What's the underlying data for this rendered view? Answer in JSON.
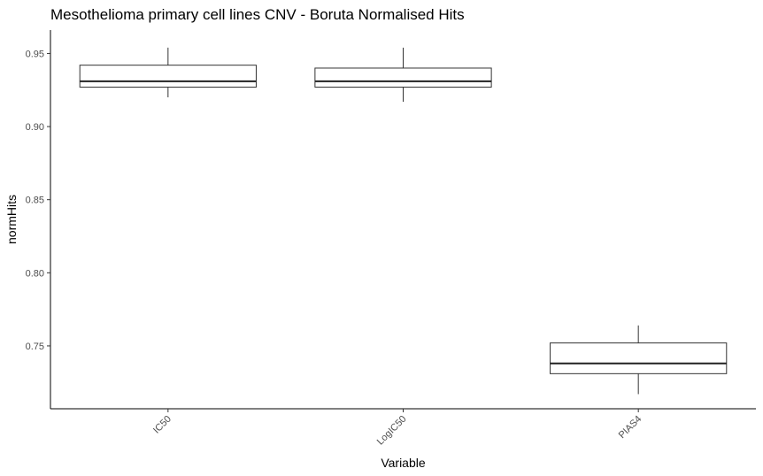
{
  "chart_data": {
    "type": "boxplot",
    "title": "Mesothelioma primary cell lines CNV - Boruta Normalised Hits",
    "xlabel": "Variable",
    "ylabel": "normHits",
    "ylim": [
      0.707,
      0.966
    ],
    "yticks": [
      "0.75",
      "0.80",
      "0.85",
      "0.90",
      "0.95"
    ],
    "categories": [
      "IC50",
      "LogIC50",
      "PIAS4"
    ],
    "boxes": [
      {
        "category": "IC50",
        "min": 0.92,
        "q1": 0.927,
        "median": 0.931,
        "q3": 0.942,
        "max": 0.954
      },
      {
        "category": "LogIC50",
        "min": 0.917,
        "q1": 0.927,
        "median": 0.931,
        "q3": 0.94,
        "max": 0.954
      },
      {
        "category": "PIAS4",
        "min": 0.717,
        "q1": 0.731,
        "median": 0.738,
        "q3": 0.752,
        "max": 0.764
      }
    ],
    "grid": false,
    "legend": "none"
  }
}
